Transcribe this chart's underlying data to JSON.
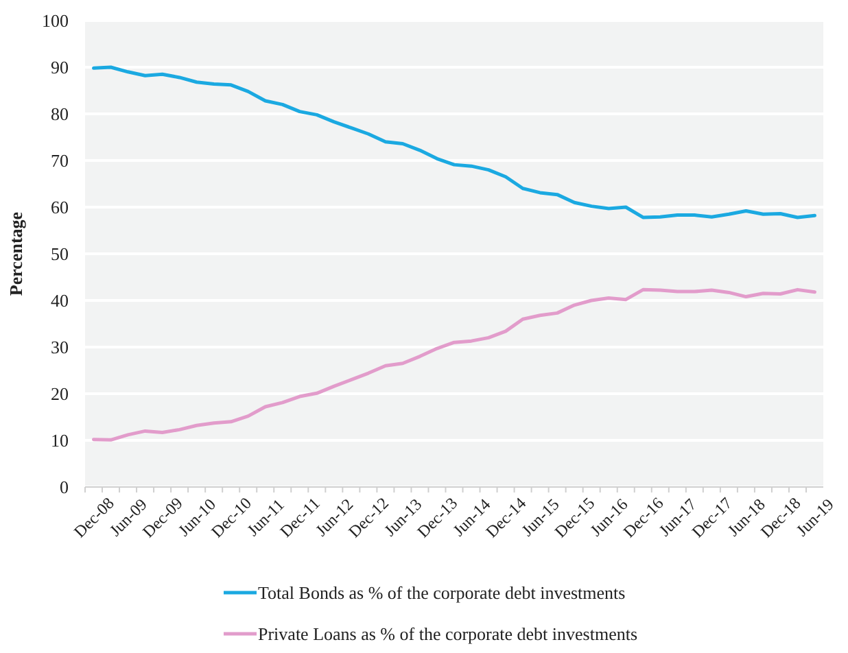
{
  "chart_data": {
    "type": "line",
    "ylabel": "Percentage",
    "categories": [
      "Dec-08",
      null,
      "Jun-09",
      null,
      "Dec-09",
      null,
      "Jun-10",
      null,
      "Dec-10",
      null,
      "Jun-11",
      null,
      "Dec-11",
      null,
      "Jun-12",
      null,
      "Dec-12",
      null,
      "Jun-13",
      null,
      "Dec-13",
      null,
      "Jun-14",
      null,
      "Dec-14",
      null,
      "Jun-15",
      null,
      "Dec-15",
      null,
      "Jun-16",
      null,
      "Dec-16",
      null,
      "Jun-17",
      null,
      "Dec-17",
      null,
      "Jun-18",
      null,
      "Dec-18",
      null,
      "Jun-19"
    ],
    "series": [
      {
        "name": "Total Bonds as % of the corporate debt investments",
        "color": "#1ba9e1",
        "values": [
          89.8,
          90,
          89,
          88.2,
          88.5,
          87.8,
          86.8,
          86.4,
          86.2,
          84.8,
          82.8,
          82,
          80.5,
          79.8,
          78.3,
          77,
          75.7,
          74,
          73.6,
          72.2,
          70.4,
          69.1,
          68.8,
          68,
          66.5,
          64,
          63.1,
          62.7,
          61,
          60.2,
          59.7,
          60,
          57.8,
          57.9,
          58.3,
          58.3,
          57.9,
          58.5,
          59.2,
          58.5,
          58.6,
          57.8,
          58.2
        ]
      },
      {
        "name": "Private Loans as % of the corporate debt investments",
        "color": "#e29ccb",
        "values": [
          10.2,
          10.1,
          11.2,
          12,
          11.7,
          12.3,
          13.2,
          13.7,
          14,
          15.2,
          17.2,
          18.1,
          19.4,
          20.1,
          21.6,
          23,
          24.4,
          26,
          26.5,
          28,
          29.7,
          31,
          31.3,
          32,
          33.4,
          36,
          36.8,
          37.3,
          39,
          40,
          40.5,
          40.2,
          42.3,
          42.2,
          41.9,
          41.9,
          42.2,
          41.7,
          40.8,
          41.5,
          41.4,
          42.3,
          41.8
        ]
      }
    ],
    "ylim": [
      0,
      100
    ],
    "yticks": [
      0,
      10,
      20,
      30,
      40,
      50,
      60,
      70,
      80,
      90,
      100
    ],
    "grid": "y",
    "legend": "bottom",
    "marker": "none",
    "line_style": "solid"
  }
}
